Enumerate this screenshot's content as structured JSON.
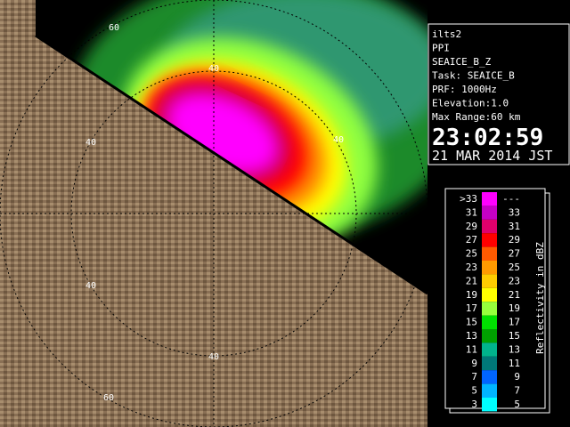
{
  "info": {
    "lines": [
      "ilts2",
      "PPI",
      "SEAICE_B_Z",
      "Task: SEAICE_B",
      "PRF: 1000Hz",
      "Elevation:1.0",
      "Max Range:60 km"
    ],
    "time": "23:02:59",
    "date": "21 MAR 2014 JST"
  },
  "ring_labels": [
    "60",
    "40",
    "40",
    "40",
    "40",
    "40",
    "60"
  ],
  "legend": {
    "title": "Reflectivity in dBZ",
    "rows": [
      {
        "label": ">33",
        "label_right": "---",
        "color": "#ff00ff"
      },
      {
        "label": "31",
        "label_right": "33",
        "color": "#c400c4"
      },
      {
        "label": "29",
        "label_right": "31",
        "color": "#e0006c"
      },
      {
        "label": "27",
        "label_right": "29",
        "color": "#ff0000"
      },
      {
        "label": "25",
        "label_right": "27",
        "color": "#ff5a00"
      },
      {
        "label": "23",
        "label_right": "25",
        "color": "#ff9a00"
      },
      {
        "label": "21",
        "label_right": "23",
        "color": "#ffcc00"
      },
      {
        "label": "19",
        "label_right": "21",
        "color": "#ffff00"
      },
      {
        "label": "17",
        "label_right": "19",
        "color": "#96ff3c"
      },
      {
        "label": "15",
        "label_right": "17",
        "color": "#00e000"
      },
      {
        "label": "13",
        "label_right": "15",
        "color": "#00a000"
      },
      {
        "label": "11",
        "label_right": "13",
        "color": "#00b48c"
      },
      {
        "label": "9",
        "label_right": "11",
        "color": "#007878"
      },
      {
        "label": "7",
        "label_right": "9",
        "color": "#0064ff"
      },
      {
        "label": "5",
        "label_right": "7",
        "color": "#00b4ff"
      },
      {
        "label": "3",
        "label_right": "5",
        "color": "#00ffff"
      }
    ]
  }
}
